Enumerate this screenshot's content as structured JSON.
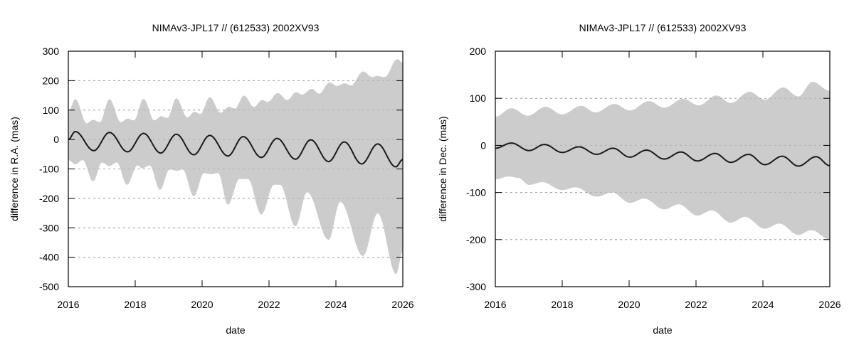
{
  "chart_data": [
    {
      "type": "area",
      "title": "NIMAv3-JPL17 // (612533) 2002XV93",
      "xlabel": "date",
      "ylabel": "difference in R.A. (mas)",
      "xlim": [
        2016,
        2026
      ],
      "ylim": [
        -500,
        300
      ],
      "xticks": [
        2016,
        2018,
        2020,
        2022,
        2024,
        2026
      ],
      "yticks": [
        -500,
        -400,
        -300,
        -200,
        -100,
        0,
        100,
        200,
        300
      ],
      "grid": "horizontal dotted",
      "legend": "none",
      "colors": {
        "line": "#1a1a1a",
        "band": "#cccccc",
        "grid": "#aaaaaa"
      },
      "line": [
        [
          2016.0,
          0
        ],
        [
          2016.21,
          27
        ],
        [
          2016.76,
          -38
        ],
        [
          2017.23,
          24
        ],
        [
          2017.77,
          -42
        ],
        [
          2018.25,
          21
        ],
        [
          2018.76,
          -46
        ],
        [
          2019.23,
          18
        ],
        [
          2019.75,
          -52
        ],
        [
          2020.23,
          14
        ],
        [
          2020.77,
          -56
        ],
        [
          2021.23,
          10
        ],
        [
          2021.77,
          -61
        ],
        [
          2022.24,
          4
        ],
        [
          2022.79,
          -67
        ],
        [
          2023.25,
          -1
        ],
        [
          2023.78,
          -75
        ],
        [
          2024.25,
          -8
        ],
        [
          2024.77,
          -83
        ],
        [
          2025.25,
          -15
        ],
        [
          2025.79,
          -93
        ],
        [
          2026.0,
          -68
        ]
      ],
      "band_upper": [
        [
          2016.0,
          95
        ],
        [
          2016.21,
          137
        ],
        [
          2016.55,
          55
        ],
        [
          2016.74,
          67
        ],
        [
          2016.94,
          59
        ],
        [
          2017.23,
          137
        ],
        [
          2017.57,
          59
        ],
        [
          2017.77,
          71
        ],
        [
          2017.96,
          65
        ],
        [
          2018.25,
          138
        ],
        [
          2018.57,
          65
        ],
        [
          2018.78,
          79
        ],
        [
          2018.96,
          73
        ],
        [
          2019.23,
          140
        ],
        [
          2019.56,
          75
        ],
        [
          2019.77,
          94
        ],
        [
          2019.95,
          87
        ],
        [
          2020.23,
          144
        ],
        [
          2020.55,
          91
        ],
        [
          2020.8,
          111
        ],
        [
          2020.98,
          105
        ],
        [
          2021.25,
          149
        ],
        [
          2021.55,
          111
        ],
        [
          2021.79,
          134
        ],
        [
          2021.96,
          128
        ],
        [
          2022.26,
          158
        ],
        [
          2022.54,
          134
        ],
        [
          2022.81,
          161
        ],
        [
          2022.99,
          153
        ],
        [
          2023.28,
          172
        ],
        [
          2023.5,
          156
        ],
        [
          2023.81,
          194
        ],
        [
          2024.03,
          182
        ],
        [
          2024.26,
          191
        ],
        [
          2024.45,
          184
        ],
        [
          2024.81,
          231
        ],
        [
          2025.09,
          212
        ],
        [
          2025.23,
          216
        ],
        [
          2025.45,
          212
        ],
        [
          2025.84,
          273
        ],
        [
          2026.0,
          261
        ]
      ],
      "band_lower": [
        [
          2016.0,
          -70
        ],
        [
          2016.21,
          -84
        ],
        [
          2016.43,
          -70
        ],
        [
          2016.74,
          -142
        ],
        [
          2017.01,
          -78
        ],
        [
          2017.22,
          -90
        ],
        [
          2017.45,
          -78
        ],
        [
          2017.75,
          -154
        ],
        [
          2018.07,
          -88
        ],
        [
          2018.21,
          -98
        ],
        [
          2018.43,
          -88
        ],
        [
          2018.74,
          -171
        ],
        [
          2019.03,
          -102
        ],
        [
          2019.24,
          -106
        ],
        [
          2019.42,
          -102
        ],
        [
          2019.75,
          -193
        ],
        [
          2020.06,
          -114
        ],
        [
          2020.27,
          -118
        ],
        [
          2020.48,
          -114
        ],
        [
          2020.77,
          -221
        ],
        [
          2021.12,
          -134
        ],
        [
          2021.37,
          -134
        ],
        [
          2021.77,
          -255
        ],
        [
          2022.15,
          -154
        ],
        [
          2022.33,
          -154
        ],
        [
          2022.79,
          -295
        ],
        [
          2023.14,
          -179
        ],
        [
          2023.78,
          -341
        ],
        [
          2024.13,
          -212
        ],
        [
          2024.81,
          -396
        ],
        [
          2025.25,
          -251
        ],
        [
          2025.8,
          -457
        ],
        [
          2026.0,
          -380
        ]
      ]
    },
    {
      "type": "area",
      "title": "NIMAv3-JPL17 // (612533) 2002XV93",
      "xlabel": "date",
      "ylabel": "difference in Dec. (mas)",
      "xlim": [
        2016,
        2026
      ],
      "ylim": [
        -300,
        200
      ],
      "xticks": [
        2016,
        2018,
        2020,
        2022,
        2024,
        2026
      ],
      "yticks": [
        -300,
        -200,
        -100,
        0,
        100,
        200
      ],
      "grid": "horizontal dotted",
      "legend": "none",
      "colors": {
        "line": "#1a1a1a",
        "band": "#cccccc",
        "grid": "#aaaaaa"
      },
      "line": [
        [
          2016.0,
          -6
        ],
        [
          2016.48,
          5
        ],
        [
          2017.01,
          -11
        ],
        [
          2017.47,
          2
        ],
        [
          2018.0,
          -15
        ],
        [
          2018.5,
          -3
        ],
        [
          2019.03,
          -19
        ],
        [
          2019.52,
          -6
        ],
        [
          2020.02,
          -25
        ],
        [
          2020.52,
          -10
        ],
        [
          2021.05,
          -29
        ],
        [
          2021.55,
          -14
        ],
        [
          2022.04,
          -33
        ],
        [
          2022.57,
          -17
        ],
        [
          2023.04,
          -36
        ],
        [
          2023.57,
          -19
        ],
        [
          2024.06,
          -41
        ],
        [
          2024.58,
          -23
        ],
        [
          2025.06,
          -44
        ],
        [
          2025.59,
          -24
        ],
        [
          2026.0,
          -43
        ]
      ],
      "band_upper": [
        [
          2016.0,
          61
        ],
        [
          2016.48,
          79
        ],
        [
          2016.97,
          63
        ],
        [
          2017.5,
          82
        ],
        [
          2018.0,
          66
        ],
        [
          2018.57,
          84
        ],
        [
          2018.99,
          70
        ],
        [
          2019.56,
          88
        ],
        [
          2020.02,
          74
        ],
        [
          2020.59,
          94
        ],
        [
          2021.05,
          80
        ],
        [
          2021.62,
          99
        ],
        [
          2022.08,
          85
        ],
        [
          2022.61,
          106
        ],
        [
          2023.04,
          90
        ],
        [
          2023.6,
          114
        ],
        [
          2024.06,
          97
        ],
        [
          2024.6,
          123
        ],
        [
          2025.06,
          104
        ],
        [
          2025.48,
          135
        ],
        [
          2026.0,
          116
        ]
      ],
      "band_lower": [
        [
          2016.0,
          -72
        ],
        [
          2016.4,
          -66
        ],
        [
          2016.69,
          -69
        ],
        [
          2017.01,
          -84
        ],
        [
          2017.4,
          -78
        ],
        [
          2018.0,
          -95
        ],
        [
          2018.39,
          -89
        ],
        [
          2019.03,
          -109
        ],
        [
          2019.49,
          -100
        ],
        [
          2020.02,
          -122
        ],
        [
          2020.45,
          -113
        ],
        [
          2021.05,
          -136
        ],
        [
          2021.48,
          -125
        ],
        [
          2022.04,
          -149
        ],
        [
          2022.47,
          -138
        ],
        [
          2023.04,
          -164
        ],
        [
          2023.46,
          -152
        ],
        [
          2024.06,
          -177
        ],
        [
          2024.49,
          -166
        ],
        [
          2025.06,
          -190
        ],
        [
          2025.45,
          -180
        ],
        [
          2026.0,
          -200
        ]
      ]
    }
  ]
}
